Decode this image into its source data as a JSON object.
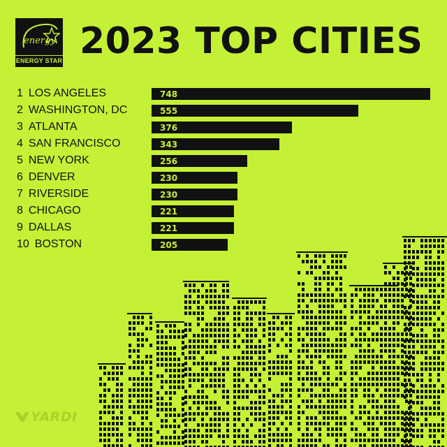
{
  "header": {
    "title": "2023 TOP CITIES",
    "logo_text": "ENERGY STAR",
    "logo_script": "energy"
  },
  "footer": {
    "brand": "YARDI"
  },
  "colors": {
    "background": "#c4f135",
    "bar": "#111111",
    "value_text": "#c4f135"
  },
  "chart_data": {
    "type": "bar",
    "orientation": "horizontal",
    "title": "2023 TOP CITIES",
    "categories": [
      "LOS ANGELES",
      "WASHINGTON, DC",
      "ATLANTA",
      "SAN FRANCISCO",
      "NEW YORK",
      "DENVER",
      "RIVERSIDE",
      "CHICAGO",
      "DALLAS",
      "BOSTON"
    ],
    "ranks": [
      "1",
      "2",
      "3",
      "4",
      "5",
      "6",
      "7",
      "8",
      "9",
      "10"
    ],
    "values": [
      748,
      555,
      376,
      343,
      256,
      230,
      230,
      221,
      221,
      205
    ],
    "xlim": [
      0,
      748
    ],
    "grid": false,
    "legend": "none"
  }
}
